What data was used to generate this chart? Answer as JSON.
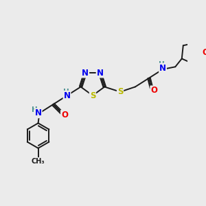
{
  "bg_color": "#ebebeb",
  "bond_color": "#1a1a1a",
  "N_color": "#0000ee",
  "O_color": "#ee0000",
  "S_color": "#bbbb00",
  "H_color": "#4a9090",
  "figsize": [
    3.0,
    3.0
  ],
  "dpi": 100,
  "xlim": [
    0,
    300
  ],
  "ylim": [
    0,
    300
  ]
}
